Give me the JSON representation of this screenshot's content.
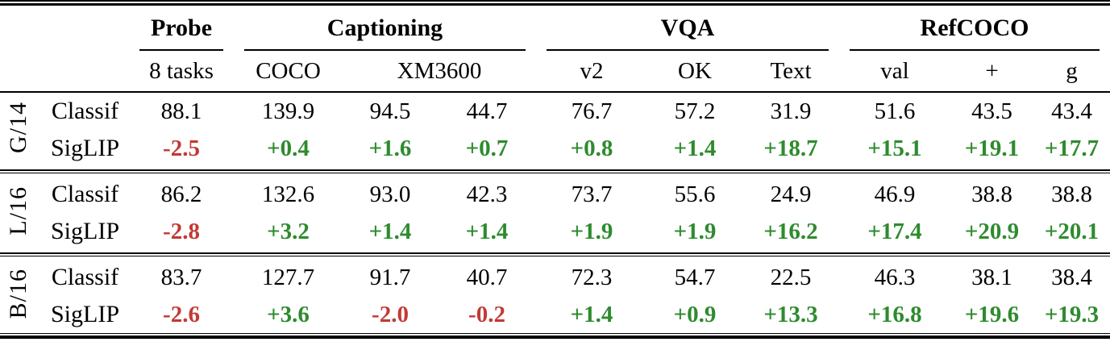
{
  "table": {
    "col_groups": [
      {
        "label": "Probe",
        "cols": 1
      },
      {
        "label": "Captioning",
        "cols": 3
      },
      {
        "label": "VQA",
        "cols": 3
      },
      {
        "label": "RefCOCO",
        "cols": 3
      }
    ],
    "sub_headers": [
      {
        "label": "8 tasks",
        "cols": 1
      },
      {
        "label": "COCO",
        "cols": 1
      },
      {
        "label": "XM3600",
        "cols": 2
      },
      {
        "label": "v2",
        "cols": 1
      },
      {
        "label": "OK",
        "cols": 1
      },
      {
        "label": "Text",
        "cols": 1
      },
      {
        "label": "val",
        "cols": 1
      },
      {
        "label": "+",
        "cols": 1
      },
      {
        "label": "g",
        "cols": 1
      }
    ],
    "groups": [
      {
        "model": "G/14",
        "rows": [
          {
            "method": "Classif",
            "values": [
              "88.1",
              "139.9",
              "94.5",
              "44.7",
              "76.7",
              "57.2",
              "31.9",
              "51.6",
              "43.5",
              "43.4"
            ]
          },
          {
            "method": "SigLIP",
            "values": [
              "-2.5",
              "+0.4",
              "+1.6",
              "+0.7",
              "+0.8",
              "+1.4",
              "+18.7",
              "+15.1",
              "+19.1",
              "+17.7"
            ]
          }
        ]
      },
      {
        "model": "L/16",
        "rows": [
          {
            "method": "Classif",
            "values": [
              "86.2",
              "132.6",
              "93.0",
              "42.3",
              "73.7",
              "55.6",
              "24.9",
              "46.9",
              "38.8",
              "38.8"
            ]
          },
          {
            "method": "SigLIP",
            "values": [
              "-2.8",
              "+3.2",
              "+1.4",
              "+1.4",
              "+1.9",
              "+1.9",
              "+16.2",
              "+17.4",
              "+20.9",
              "+20.1"
            ]
          }
        ]
      },
      {
        "model": "B/16",
        "rows": [
          {
            "method": "Classif",
            "values": [
              "83.7",
              "127.7",
              "91.7",
              "40.7",
              "72.3",
              "54.7",
              "22.5",
              "46.3",
              "38.1",
              "38.4"
            ]
          },
          {
            "method": "SigLIP",
            "values": [
              "-2.6",
              "+3.6",
              "-2.0",
              "-0.2",
              "+1.4",
              "+0.9",
              "+13.3",
              "+16.8",
              "+19.6",
              "+19.3"
            ]
          }
        ]
      }
    ]
  },
  "colors": {
    "positive_delta": "#2e8b2e",
    "negative_delta": "#c23a36",
    "text": "#000000",
    "background": "#ffffff"
  }
}
